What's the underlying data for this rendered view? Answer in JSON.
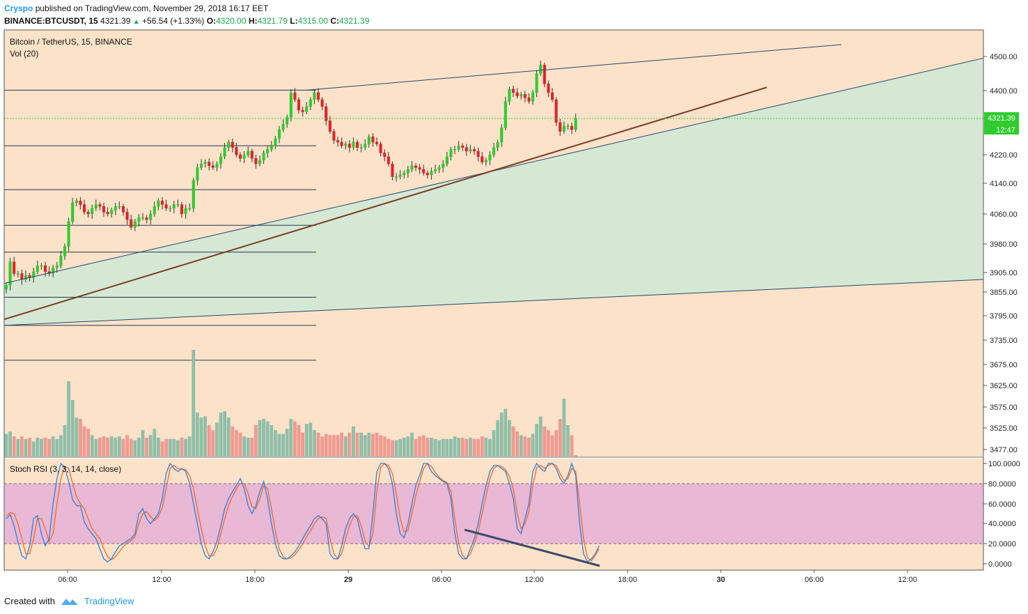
{
  "header": {
    "author": "Cryspo",
    "published": "published on TradingView.com, November 29, 2018 16:17 EET",
    "symbol": "BINANCE:BTCUSDT, 15",
    "last": "4321.39",
    "change": "+56.54 (+1.33%)",
    "o_label": "O:",
    "o": "4320.00",
    "h_label": "H:",
    "h": "4321.79",
    "l_label": "L:",
    "l": "4315.00",
    "c_label": "C:",
    "c": "4321.39"
  },
  "main_pane": {
    "title": "Bitcoin / TetherUS, 15, BINANCE",
    "volume_label": "Vol (20)",
    "price_tag": "4321.39",
    "timer_tag": "12:47"
  },
  "rsi_pane": {
    "title": "Stoch RSI (3, 3, 14, 14, close)"
  },
  "footer": {
    "created": "Created with",
    "brand": "TradingView"
  },
  "colors": {
    "background": "#fbe2c9",
    "channel_fill": "#d5e8d4",
    "bull": "#2ecc2e",
    "bear": "#e0222a",
    "vol_bull": "#8fbfa9",
    "vol_bear": "#ef9a91",
    "rsi_band": "#e8b8d4",
    "k_line": "#2f7fe0",
    "d_line": "#f26a24",
    "trend_line": "#7a3b25",
    "channel_line": "#24466b",
    "price_tag": "#2ecc2e"
  },
  "chart_data": [
    {
      "type": "candlestick",
      "title": "Bitcoin / TetherUS, 15, BINANCE",
      "interval": "15m",
      "x_tick_labels": [
        "06:00",
        "12:00",
        "18:00",
        "29",
        "06:00",
        "12:00",
        "18:00",
        "30",
        "06:00",
        "12:00"
      ],
      "y_tick_labels": [
        "4500.00",
        "4400.00",
        "4220.00",
        "4140.00",
        "4060.00",
        "3980.00",
        "3905.00",
        "3855.00",
        "3795.00",
        "3735.00",
        "3675.00",
        "3625.00",
        "3575.00",
        "3525.00",
        "3477.00"
      ],
      "y_scale": "log",
      "last_price": 4321.39,
      "closes": [
        3875,
        3935,
        3905,
        3905,
        3890,
        3900,
        3895,
        3910,
        3925,
        3925,
        3910,
        3905,
        3920,
        3925,
        3950,
        3975,
        4040,
        4090,
        4095,
        4085,
        4065,
        4060,
        4075,
        4085,
        4080,
        4065,
        4060,
        4070,
        4080,
        4080,
        4065,
        4045,
        4025,
        4040,
        4050,
        4050,
        4045,
        4060,
        4080,
        4095,
        4085,
        4075,
        4075,
        4085,
        4085,
        4060,
        4075,
        4075,
        4150,
        4185,
        4195,
        4200,
        4190,
        4185,
        4195,
        4215,
        4240,
        4255,
        4240,
        4220,
        4210,
        4220,
        4230,
        4210,
        4195,
        4205,
        4225,
        4235,
        4245,
        4265,
        4290,
        4305,
        4325,
        4395,
        4375,
        4345,
        4340,
        4355,
        4375,
        4395,
        4375,
        4355,
        4315,
        4285,
        4260,
        4255,
        4245,
        4250,
        4240,
        4255,
        4240,
        4240,
        4250,
        4270,
        4255,
        4250,
        4225,
        4215,
        4195,
        4160,
        4160,
        4165,
        4170,
        4180,
        4190,
        4185,
        4180,
        4170,
        4165,
        4175,
        4180,
        4185,
        4195,
        4215,
        4235,
        4235,
        4245,
        4240,
        4230,
        4235,
        4230,
        4215,
        4200,
        4205,
        4220,
        4240,
        4255,
        4295,
        4370,
        4405,
        4395,
        4385,
        4390,
        4380,
        4370,
        4395,
        4450,
        4475,
        4420,
        4395,
        4375,
        4310,
        4285,
        4300,
        4300,
        4290,
        4322
      ],
      "volume_scale": "relative (0-100)",
      "volumes": [
        18,
        20,
        16,
        14,
        16,
        14,
        15,
        12,
        15,
        14,
        15,
        14,
        16,
        14,
        17,
        25,
        60,
        45,
        31,
        30,
        24,
        22,
        17,
        14,
        15,
        16,
        15,
        16,
        15,
        16,
        14,
        17,
        14,
        13,
        15,
        21,
        15,
        17,
        22,
        15,
        12,
        14,
        14,
        14,
        13,
        15,
        14,
        16,
        85,
        35,
        31,
        32,
        25,
        21,
        27,
        35,
        36,
        31,
        24,
        21,
        19,
        16,
        15,
        15,
        25,
        29,
        30,
        28,
        25,
        21,
        18,
        18,
        22,
        30,
        28,
        25,
        19,
        26,
        27,
        21,
        19,
        16,
        18,
        17,
        17,
        17,
        19,
        16,
        19,
        24,
        19,
        19,
        17,
        19,
        18,
        19,
        17,
        16,
        14,
        13,
        13,
        14,
        15,
        16,
        19,
        14,
        16,
        17,
        15,
        15,
        14,
        13,
        14,
        14,
        14,
        16,
        15,
        15,
        14,
        15,
        14,
        14,
        16,
        15,
        14,
        21,
        29,
        35,
        38,
        29,
        24,
        20,
        17,
        16,
        15,
        18,
        26,
        32,
        24,
        21,
        17,
        21,
        30,
        46,
        25,
        17,
        1
      ]
    },
    {
      "type": "line",
      "title": "Stoch RSI (3, 3, 14, 14, close)",
      "x_tick_labels": [
        "06:00",
        "12:00",
        "18:00",
        "29",
        "06:00",
        "12:00",
        "18:00",
        "30",
        "06:00",
        "12:00"
      ],
      "y_tick_labels": [
        "100.0000",
        "80.0000",
        "60.0000",
        "40.0000",
        "20.0000",
        "0.0000"
      ],
      "ylim": [
        0,
        100
      ],
      "band": [
        20,
        80
      ],
      "series": [
        {
          "values": [
            45,
            49,
            38,
            22,
            8,
            5,
            18,
            45,
            48,
            30,
            18,
            25,
            60,
            85,
            100,
            96,
            82,
            64,
            58,
            58,
            42,
            35,
            30,
            25,
            15,
            5,
            2,
            5,
            12,
            18,
            20,
            23,
            25,
            30,
            50,
            55,
            45,
            40,
            45,
            50,
            65,
            90,
            100,
            95,
            92,
            95,
            92,
            80,
            60,
            40,
            20,
            8,
            5,
            12,
            22,
            38,
            55,
            65,
            72,
            78,
            85,
            75,
            58,
            50,
            58,
            72,
            82,
            65,
            40,
            20,
            8,
            5,
            5,
            8,
            12,
            18,
            25,
            32,
            38,
            45,
            48,
            45,
            40,
            10,
            5,
            5,
            18,
            35,
            45,
            50,
            45,
            28,
            15,
            15,
            50,
            92,
            100,
            100,
            95,
            80,
            50,
            30,
            26,
            40,
            60,
            78,
            88,
            100,
            100,
            92,
            88,
            85,
            82,
            80,
            65,
            30,
            10,
            5,
            5,
            15,
            25,
            40,
            60,
            78,
            92,
            98,
            98,
            95,
            92,
            80,
            65,
            35,
            30,
            45,
            60,
            92,
            100,
            95,
            92,
            100,
            100,
            95,
            85,
            80,
            88,
            100,
            88,
            40,
            10,
            2,
            5,
            10,
            18
          ]
        },
        {
          "values": [
            48,
            51,
            50,
            40,
            25,
            10,
            10,
            25,
            45,
            45,
            35,
            22,
            30,
            60,
            85,
            97,
            95,
            80,
            67,
            60,
            55,
            45,
            35,
            30,
            25,
            15,
            7,
            4,
            7,
            12,
            17,
            21,
            23,
            27,
            40,
            50,
            52,
            47,
            43,
            47,
            56,
            75,
            95,
            98,
            95,
            94,
            94,
            88,
            75,
            55,
            35,
            18,
            8,
            8,
            15,
            30,
            45,
            58,
            67,
            75,
            80,
            80,
            70,
            57,
            55,
            65,
            78,
            75,
            55,
            32,
            15,
            7,
            5,
            6,
            9,
            14,
            20,
            27,
            33,
            40,
            45,
            47,
            45,
            25,
            10,
            5,
            10,
            25,
            38,
            47,
            48,
            38,
            23,
            17,
            30,
            72,
            96,
            100,
            98,
            90,
            70,
            45,
            32,
            33,
            50,
            68,
            82,
            95,
            100,
            97,
            91,
            86,
            83,
            81,
            72,
            45,
            20,
            8,
            5,
            10,
            20,
            32,
            50,
            68,
            85,
            95,
            98,
            97,
            94,
            87,
            75,
            50,
            35,
            40,
            52,
            78,
            96,
            98,
            95,
            98,
            100,
            98,
            90,
            83,
            85,
            95,
            92,
            60,
            25,
            6,
            3,
            8,
            15
          ]
        }
      ]
    }
  ]
}
